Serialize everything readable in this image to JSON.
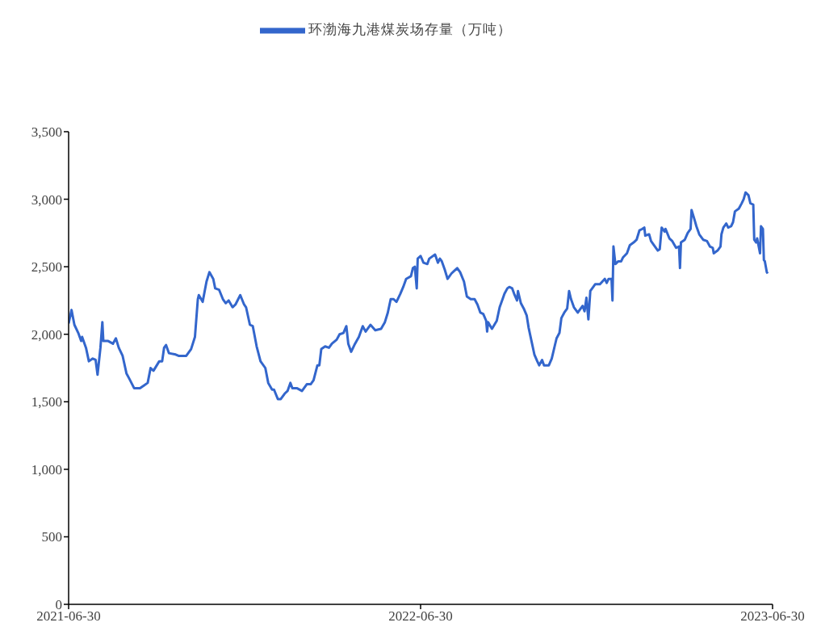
{
  "chart_data": {
    "type": "line",
    "legend": "top",
    "marker": "none",
    "line_style": "solid",
    "grid": false,
    "xlim": [
      "2021-06-30",
      "2023-06-30"
    ],
    "xticks": [
      "2021-06-30",
      "2022-06-30",
      "2023-06-30"
    ],
    "ylim": [
      0,
      3500
    ],
    "yticks": [
      0,
      500,
      {
        "value": 1000,
        "label": "1,000"
      },
      {
        "value": 1500,
        "label": "1,500"
      },
      {
        "value": 2000,
        "label": "2,000"
      },
      {
        "value": 2500,
        "label": "2,500"
      },
      {
        "value": 3000,
        "label": "3,000"
      },
      {
        "value": 3500,
        "label": "3,500"
      }
    ],
    "x": [
      "2021-06-30",
      "2021-07-03",
      "2021-07-06",
      "2021-07-10",
      "2021-07-13",
      "2021-07-14",
      "2021-07-18",
      "2021-07-21",
      "2021-07-25",
      "2021-07-28",
      "2021-07-30",
      "2021-08-02",
      "2021-08-04",
      "2021-08-05",
      "2021-08-10",
      "2021-08-15",
      "2021-08-18",
      "2021-08-21",
      "2021-08-25",
      "2021-08-29",
      "2021-09-01",
      "2021-09-06",
      "2021-09-12",
      "2021-09-16",
      "2021-09-20",
      "2021-09-23",
      "2021-09-26",
      "2021-10-02",
      "2021-10-05",
      "2021-10-07",
      "2021-10-09",
      "2021-10-12",
      "2021-10-19",
      "2021-10-22",
      "2021-10-26",
      "2021-10-30",
      "2021-11-04",
      "2021-11-08",
      "2021-11-11",
      "2021-11-12",
      "2021-11-16",
      "2021-11-20",
      "2021-11-23",
      "2021-11-27",
      "2021-11-29",
      "2021-12-03",
      "2021-12-07",
      "2021-12-10",
      "2021-12-13",
      "2021-12-17",
      "2021-12-20",
      "2021-12-25",
      "2021-12-29",
      "2021-12-31",
      "2022-01-04",
      "2022-01-07",
      "2022-01-11",
      "2022-01-15",
      "2022-01-20",
      "2022-01-23",
      "2022-01-27",
      "2022-01-29",
      "2022-02-02",
      "2022-02-05",
      "2022-02-09",
      "2022-02-12",
      "2022-02-15",
      "2022-02-17",
      "2022-02-22",
      "2022-02-27",
      "2022-03-04",
      "2022-03-08",
      "2022-03-11",
      "2022-03-15",
      "2022-03-17",
      "2022-03-19",
      "2022-03-23",
      "2022-03-27",
      "2022-03-30",
      "2022-04-04",
      "2022-04-07",
      "2022-04-11",
      "2022-04-14",
      "2022-04-16",
      "2022-04-19",
      "2022-04-23",
      "2022-04-27",
      "2022-05-01",
      "2022-05-04",
      "2022-05-09",
      "2022-05-14",
      "2022-05-20",
      "2022-05-24",
      "2022-05-27",
      "2022-05-30",
      "2022-06-02",
      "2022-06-05",
      "2022-06-09",
      "2022-06-12",
      "2022-06-15",
      "2022-06-20",
      "2022-06-22",
      "2022-06-24",
      "2022-06-26",
      "2022-06-27",
      "2022-06-30",
      "2022-07-03",
      "2022-07-07",
      "2022-07-09",
      "2022-07-15",
      "2022-07-18",
      "2022-07-20",
      "2022-07-22",
      "2022-07-25",
      "2022-07-28",
      "2022-08-01",
      "2022-08-04",
      "2022-08-07",
      "2022-08-10",
      "2022-08-14",
      "2022-08-17",
      "2022-08-21",
      "2022-08-25",
      "2022-08-28",
      "2022-08-31",
      "2022-09-03",
      "2022-09-06",
      "2022-09-07",
      "2022-09-08",
      "2022-09-12",
      "2022-09-17",
      "2022-09-20",
      "2022-09-23",
      "2022-09-25",
      "2022-09-28",
      "2022-09-30",
      "2022-10-03",
      "2022-10-05",
      "2022-10-08",
      "2022-10-09",
      "2022-10-12",
      "2022-10-15",
      "2022-10-18",
      "2022-10-20",
      "2022-10-23",
      "2022-10-26",
      "2022-10-29",
      "2022-10-31",
      "2022-11-03",
      "2022-11-05",
      "2022-11-10",
      "2022-11-13",
      "2022-11-16",
      "2022-11-18",
      "2022-11-21",
      "2022-11-23",
      "2022-11-26",
      "2022-11-29",
      "2022-12-01",
      "2022-12-03",
      "2022-12-06",
      "2022-12-10",
      "2022-12-15",
      "2022-12-17",
      "2022-12-19",
      "2022-12-21",
      "2022-12-23",
      "2022-12-25",
      "2022-12-28",
      "2023-01-02",
      "2023-01-07",
      "2023-01-09",
      "2023-01-11",
      "2023-01-14",
      "2023-01-15",
      "2023-01-16",
      "2023-01-18",
      "2023-01-21",
      "2023-01-24",
      "2023-01-26",
      "2023-01-30",
      "2023-02-02",
      "2023-02-06",
      "2023-02-09",
      "2023-02-12",
      "2023-02-15",
      "2023-02-17",
      "2023-02-18",
      "2023-02-22",
      "2023-02-24",
      "2023-02-28",
      "2023-03-03",
      "2023-03-05",
      "2023-03-06",
      "2023-03-07",
      "2023-03-10",
      "2023-03-11",
      "2023-03-15",
      "2023-03-18",
      "2023-03-22",
      "2023-03-25",
      "2023-03-26",
      "2023-03-27",
      "2023-03-31",
      "2023-04-03",
      "2023-04-06",
      "2023-04-07",
      "2023-04-10",
      "2023-04-12",
      "2023-04-15",
      "2023-04-19",
      "2023-04-23",
      "2023-04-26",
      "2023-04-29",
      "2023-04-30",
      "2023-05-04",
      "2023-05-07",
      "2023-05-08",
      "2023-05-10",
      "2023-05-13",
      "2023-05-15",
      "2023-05-18",
      "2023-05-20",
      "2023-05-22",
      "2023-05-26",
      "2023-05-29",
      "2023-05-31",
      "2023-06-02",
      "2023-06-05",
      "2023-06-07",
      "2023-06-10",
      "2023-06-11",
      "2023-06-13",
      "2023-06-14",
      "2023-06-17",
      "2023-06-18",
      "2023-06-20",
      "2023-06-21",
      "2023-06-22",
      "2023-06-24",
      "2023-06-25"
    ],
    "series": [
      {
        "name": "环渤海九港煤炭场存量（万吨）",
        "color": "#3366cc",
        "values": [
          2080,
          2180,
          2070,
          2010,
          1950,
          1980,
          1900,
          1800,
          1820,
          1810,
          1700,
          1900,
          2090,
          1950,
          1950,
          1930,
          1970,
          1900,
          1840,
          1710,
          1670,
          1600,
          1600,
          1620,
          1640,
          1750,
          1730,
          1800,
          1800,
          1900,
          1920,
          1860,
          1850,
          1840,
          1840,
          1840,
          1890,
          1980,
          2260,
          2290,
          2240,
          2390,
          2460,
          2410,
          2340,
          2330,
          2260,
          2230,
          2250,
          2200,
          2220,
          2290,
          2220,
          2200,
          2070,
          2060,
          1910,
          1800,
          1750,
          1640,
          1590,
          1590,
          1520,
          1520,
          1560,
          1580,
          1640,
          1600,
          1600,
          1580,
          1630,
          1630,
          1660,
          1770,
          1770,
          1890,
          1910,
          1900,
          1930,
          1960,
          2000,
          2010,
          2060,
          1930,
          1870,
          1930,
          1980,
          2060,
          2020,
          2070,
          2030,
          2040,
          2090,
          2160,
          2260,
          2260,
          2240,
          2300,
          2350,
          2410,
          2430,
          2490,
          2500,
          2340,
          2560,
          2580,
          2530,
          2520,
          2560,
          2590,
          2530,
          2560,
          2540,
          2480,
          2410,
          2450,
          2470,
          2490,
          2460,
          2390,
          2280,
          2260,
          2260,
          2220,
          2160,
          2150,
          2100,
          2020,
          2090,
          2040,
          2100,
          2200,
          2260,
          2300,
          2340,
          2350,
          2340,
          2300,
          2250,
          2320,
          2230,
          2190,
          2140,
          2050,
          1950,
          1850,
          1800,
          1770,
          1810,
          1770,
          1770,
          1820,
          1910,
          1970,
          2010,
          2120,
          2160,
          2190,
          2320,
          2260,
          2200,
          2160,
          2210,
          2170,
          2270,
          2110,
          2320,
          2340,
          2370,
          2370,
          2410,
          2380,
          2410,
          2410,
          2250,
          2650,
          2520,
          2540,
          2540,
          2570,
          2600,
          2660,
          2680,
          2700,
          2770,
          2780,
          2790,
          2730,
          2740,
          2690,
          2650,
          2620,
          2630,
          2710,
          2790,
          2760,
          2780,
          2710,
          2690,
          2640,
          2650,
          2490,
          2680,
          2700,
          2750,
          2780,
          2920,
          2850,
          2800,
          2740,
          2700,
          2690,
          2650,
          2640,
          2600,
          2620,
          2650,
          2740,
          2790,
          2820,
          2790,
          2800,
          2830,
          2910,
          2930,
          2970,
          3000,
          3050,
          3030,
          2970,
          2960,
          2700,
          2680,
          2710,
          2600,
          2800,
          2780,
          2550,
          2540,
          2460,
          2450
        ]
      }
    ]
  }
}
